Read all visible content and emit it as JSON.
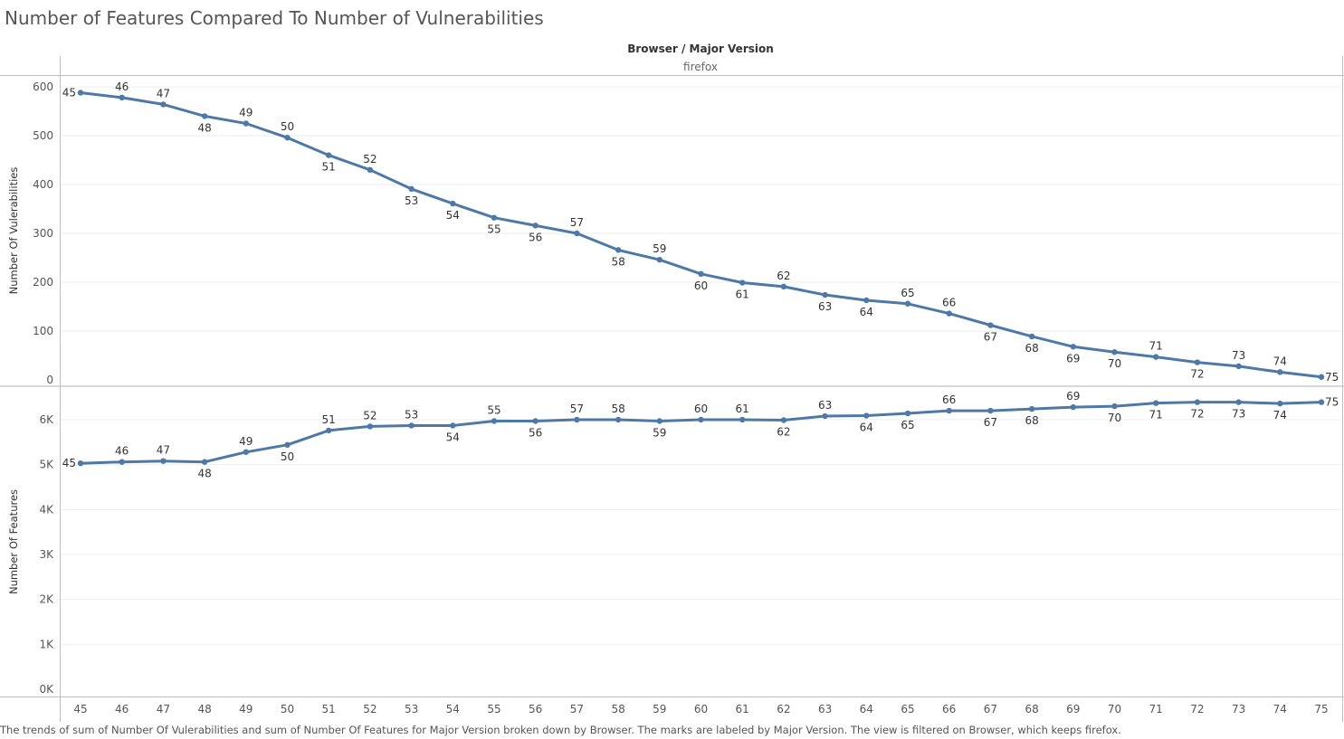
{
  "title": "Number of Features Compared To Number of Vulnerabilities",
  "caption": "The trends of sum of Number Of Vulerabilities and sum of Number Of Features for Major Version broken down by Browser.  The marks are labeled by Major Version. The view is filtered on Browser, which keeps firefox.",
  "colors": {
    "line": "#4e79a7",
    "grid": "#eeeeee",
    "axis": "#bfbfbf",
    "text": "#555555"
  },
  "chart_data": {
    "type": "line",
    "column_header": "Browser  /  Major Version",
    "column_value": "firefox",
    "x": [
      45,
      46,
      47,
      48,
      49,
      50,
      51,
      52,
      53,
      54,
      55,
      56,
      57,
      58,
      59,
      60,
      61,
      62,
      63,
      64,
      65,
      66,
      67,
      68,
      69,
      70,
      71,
      72,
      73,
      74,
      75
    ],
    "panes": [
      {
        "ylabel": "Number Of Vulerabilities",
        "ylim": [
          0,
          620
        ],
        "yticks": [
          0,
          100,
          200,
          300,
          400,
          500,
          600
        ],
        "ytick_labels": [
          "0",
          "100",
          "200",
          "300",
          "400",
          "500",
          "600"
        ],
        "values": [
          588,
          578,
          564,
          540,
          525,
          496,
          460,
          430,
          391,
          361,
          332,
          316,
          300,
          266,
          246,
          217,
          199,
          191,
          174,
          163,
          156,
          136,
          112,
          89,
          68,
          57,
          47,
          36,
          28,
          16,
          6
        ],
        "label_positions": [
          "left",
          "above",
          "above",
          "below",
          "above",
          "above",
          "below",
          "above",
          "below",
          "below",
          "below",
          "below",
          "above",
          "below",
          "above",
          "below",
          "below",
          "above",
          "below",
          "below",
          "above",
          "above",
          "below",
          "below",
          "below",
          "below",
          "above",
          "below",
          "above",
          "above",
          "right"
        ]
      },
      {
        "ylabel": "Number Of Features",
        "ylim": [
          0,
          6600
        ],
        "yticks": [
          0,
          1000,
          2000,
          3000,
          4000,
          5000,
          6000
        ],
        "ytick_labels": [
          "0K",
          "1K",
          "2K",
          "3K",
          "4K",
          "5K",
          "6K"
        ],
        "values": [
          5030,
          5060,
          5080,
          5060,
          5280,
          5440,
          5760,
          5850,
          5870,
          5870,
          5970,
          5970,
          6000,
          6000,
          5970,
          6000,
          6000,
          5990,
          6080,
          6090,
          6140,
          6200,
          6200,
          6240,
          6280,
          6300,
          6370,
          6390,
          6390,
          6360,
          6390
        ],
        "label_positions": [
          "left",
          "above",
          "above",
          "below",
          "above",
          "below",
          "above",
          "above",
          "above",
          "below",
          "above",
          "below",
          "above",
          "above",
          "below",
          "above",
          "above",
          "below",
          "above",
          "below",
          "below",
          "above",
          "below",
          "below",
          "above",
          "below",
          "below",
          "below",
          "below",
          "below",
          "right"
        ]
      }
    ]
  }
}
